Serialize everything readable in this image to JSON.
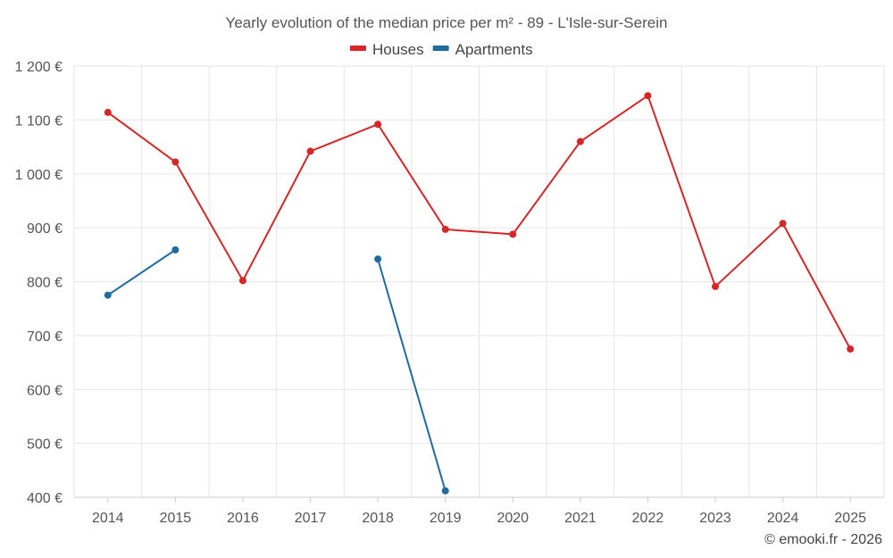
{
  "chart_data": {
    "type": "line",
    "title": "Yearly evolution of the median price per m² - 89 - L'Isle-sur-Serein",
    "x": [
      "2014",
      "2015",
      "2016",
      "2017",
      "2018",
      "2019",
      "2020",
      "2021",
      "2022",
      "2023",
      "2024",
      "2025"
    ],
    "series": [
      {
        "name": "Houses",
        "color": "#d62728",
        "values": [
          1114,
          1022,
          802,
          1042,
          1092,
          897,
          888,
          1060,
          1145,
          791,
          908,
          675
        ]
      },
      {
        "name": "Apartments",
        "color": "#1f6b9e",
        "values": [
          775,
          859,
          null,
          null,
          842,
          412,
          null,
          null,
          null,
          null,
          null,
          null
        ]
      }
    ],
    "ylim": [
      400,
      1200
    ],
    "yticks": [
      400,
      500,
      600,
      700,
      800,
      900,
      1000,
      1100,
      1200
    ],
    "ytick_labels": [
      "400 €",
      "500 €",
      "600 €",
      "700 €",
      "800 €",
      "900 €",
      "1 000 €",
      "1 100 €",
      "1 200 €"
    ],
    "xlabel": "",
    "ylabel": "",
    "grid": true,
    "legend_position": "top-center"
  },
  "credit": "© emooki.fr - 2026"
}
